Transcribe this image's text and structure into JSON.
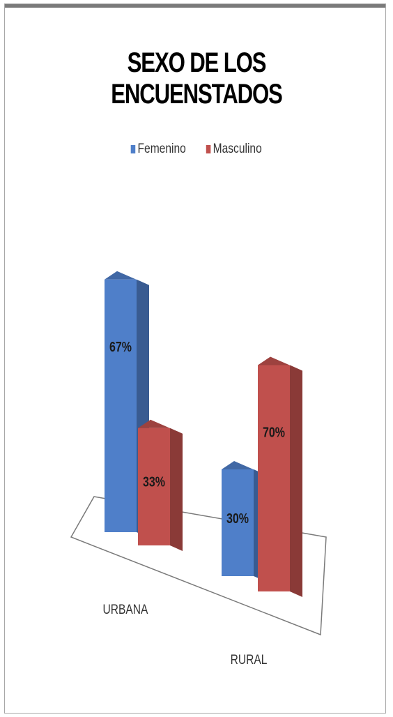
{
  "chart_data": {
    "type": "bar",
    "title": "SEXO DE LOS ENCUENSTADOS",
    "categories": [
      "URBANA",
      "RURAL"
    ],
    "series": [
      {
        "name": "Femenino",
        "values": [
          67,
          30
        ],
        "labels": [
          "67%",
          "30%"
        ],
        "color": "#4f7fc9"
      },
      {
        "name": "Masculino",
        "values": [
          33,
          70
        ],
        "labels": [
          "33%",
          "70%"
        ],
        "color": "#c0504d"
      }
    ],
    "unit": "%",
    "ylim": [
      0,
      100
    ],
    "grid": false,
    "legend": "top-center",
    "view": "3d-column"
  }
}
